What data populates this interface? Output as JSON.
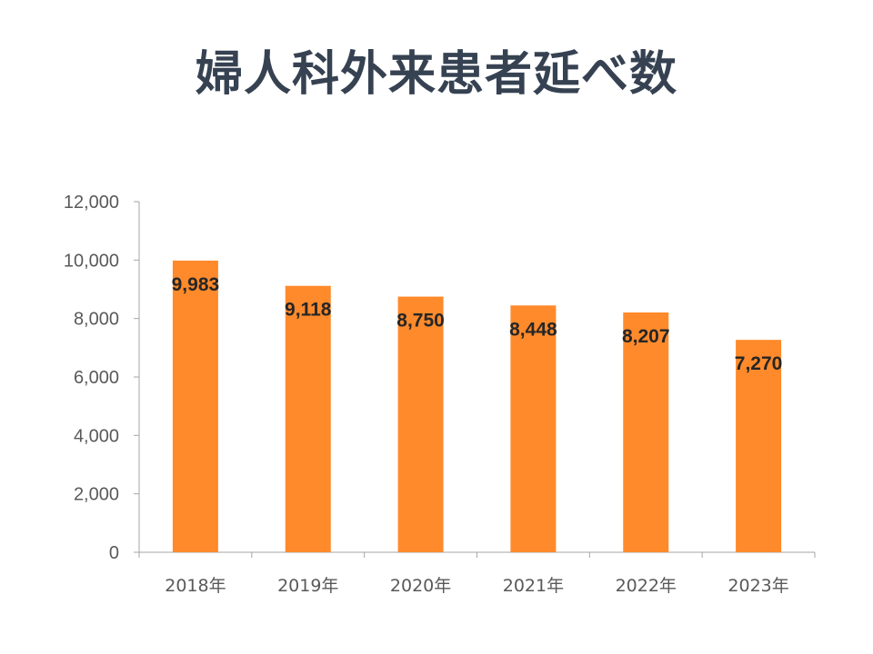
{
  "chart_data": {
    "type": "bar",
    "title": "婦人科外来患者延べ数",
    "categories": [
      "2018年",
      "2019年",
      "2020年",
      "2021年",
      "2022年",
      "2023年"
    ],
    "series": [
      {
        "values": [
          9983,
          9118,
          8750,
          8448,
          8207,
          7270
        ],
        "labels": [
          "9,983",
          "9,118",
          "8,750",
          "8,448",
          "8,207",
          "7,270"
        ],
        "color": "#FF8A2B"
      }
    ],
    "yticks": [
      "0",
      "2,000",
      "4,000",
      "6,000",
      "8,000",
      "10,000",
      "12,000"
    ],
    "ylim": [
      0,
      12000
    ],
    "grid": false,
    "legend": "none"
  },
  "colors": {
    "title": "#364252",
    "axis": "#A6A6A6"
  }
}
